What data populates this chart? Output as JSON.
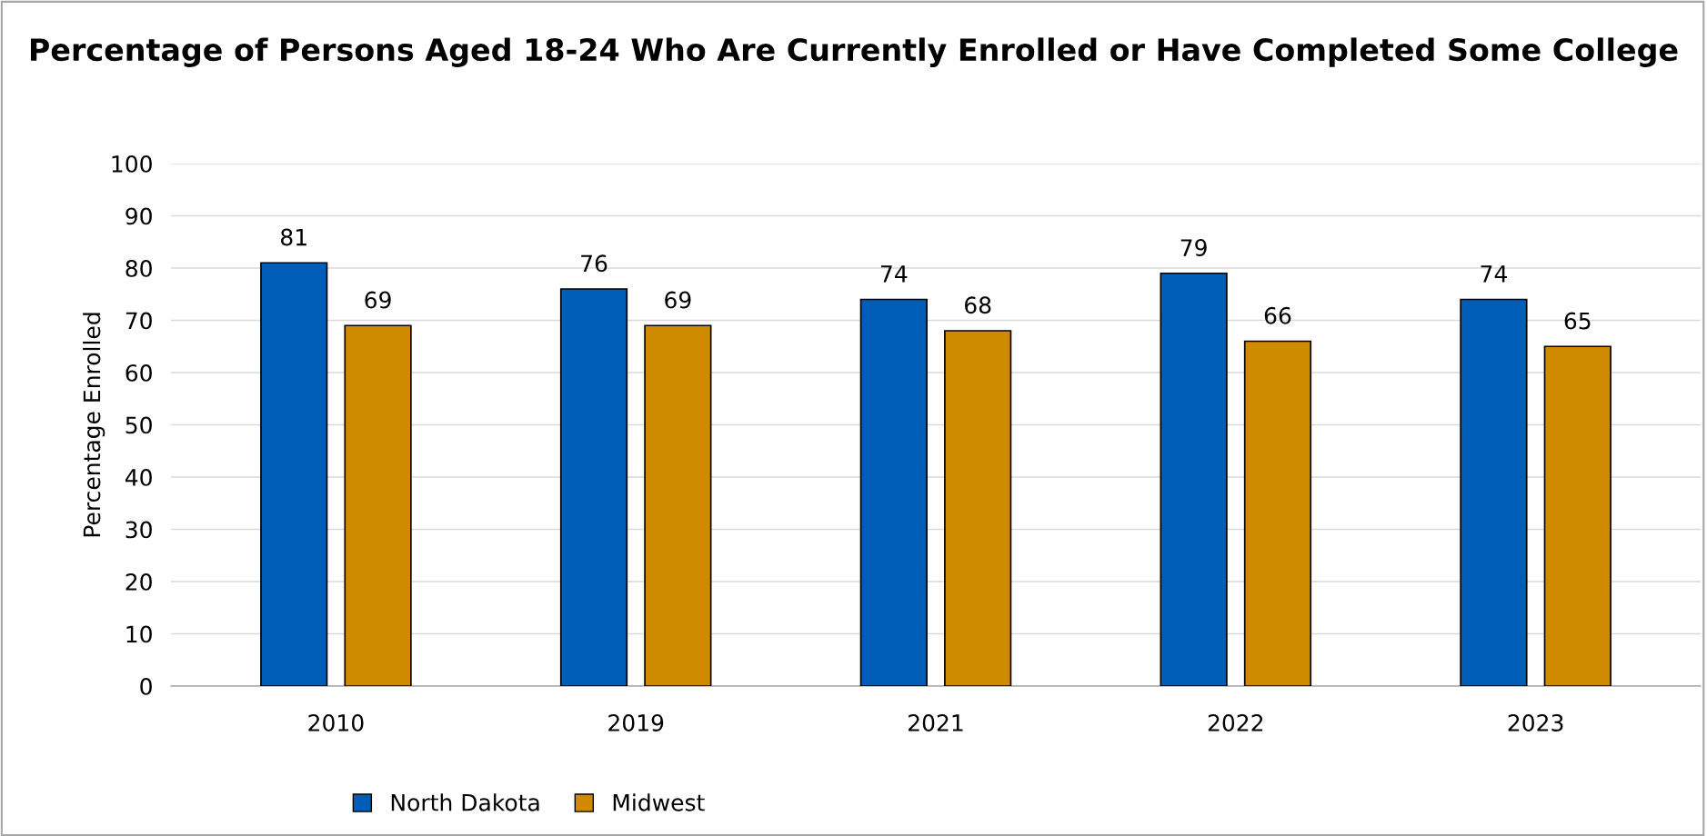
{
  "chart_data": {
    "type": "bar",
    "title": "Percentage of Persons Aged 18-24 Who Are Currently Enrolled or Have Completed Some College",
    "ylabel": "Percentage Enrolled",
    "categories": [
      "2010",
      "2019",
      "2021",
      "2022",
      "2023"
    ],
    "series": [
      {
        "name": "North Dakota",
        "color": "#005eb8",
        "values": [
          81,
          76,
          74,
          79,
          74
        ]
      },
      {
        "name": "Midwest",
        "color": "#d08a00",
        "values": [
          69,
          69,
          68,
          66,
          65
        ]
      }
    ],
    "ylim": [
      0,
      100
    ],
    "yticks": [
      0,
      10,
      20,
      30,
      40,
      50,
      60,
      70,
      80,
      90,
      100
    ],
    "grid": "y",
    "legend": "bottom",
    "data_labels": true
  }
}
